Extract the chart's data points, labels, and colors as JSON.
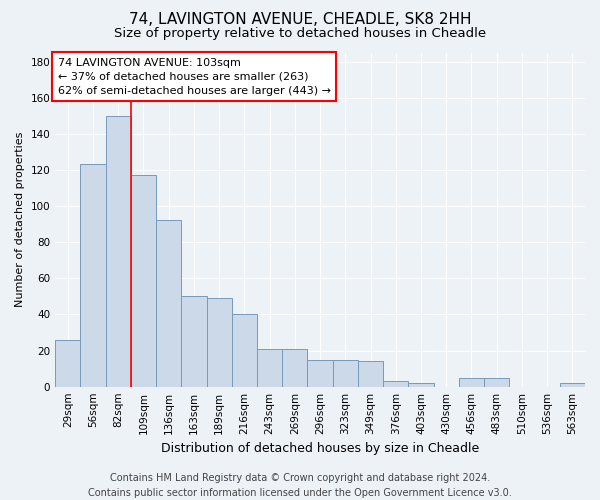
{
  "title1": "74, LAVINGTON AVENUE, CHEADLE, SK8 2HH",
  "title2": "Size of property relative to detached houses in Cheadle",
  "xlabel": "Distribution of detached houses by size in Cheadle",
  "ylabel": "Number of detached properties",
  "categories": [
    "29sqm",
    "56sqm",
    "82sqm",
    "109sqm",
    "136sqm",
    "163sqm",
    "189sqm",
    "216sqm",
    "243sqm",
    "269sqm",
    "296sqm",
    "323sqm",
    "349sqm",
    "376sqm",
    "403sqm",
    "430sqm",
    "456sqm",
    "483sqm",
    "510sqm",
    "536sqm",
    "563sqm"
  ],
  "values": [
    26,
    123,
    150,
    117,
    92,
    50,
    49,
    40,
    21,
    21,
    15,
    15,
    14,
    3,
    2,
    0,
    5,
    5,
    0,
    0,
    2
  ],
  "bar_color": "#ccd9e8",
  "bar_edge_color": "#7799bb",
  "vline_color": "red",
  "vline_index": 2.5,
  "annotation_text": "74 LAVINGTON AVENUE: 103sqm\n← 37% of detached houses are smaller (263)\n62% of semi-detached houses are larger (443) →",
  "annotation_box_facecolor": "white",
  "annotation_box_edgecolor": "red",
  "ylim": [
    0,
    185
  ],
  "yticks": [
    0,
    20,
    40,
    60,
    80,
    100,
    120,
    140,
    160,
    180
  ],
  "footer1": "Contains HM Land Registry data © Crown copyright and database right 2024.",
  "footer2": "Contains public sector information licensed under the Open Government Licence v3.0.",
  "bg_color": "#edf2f7",
  "grid_color": "#ffffff",
  "title1_fontsize": 11,
  "title2_fontsize": 9.5,
  "xlabel_fontsize": 9,
  "ylabel_fontsize": 8,
  "tick_fontsize": 7.5,
  "annotation_fontsize": 8,
  "footer_fontsize": 7
}
